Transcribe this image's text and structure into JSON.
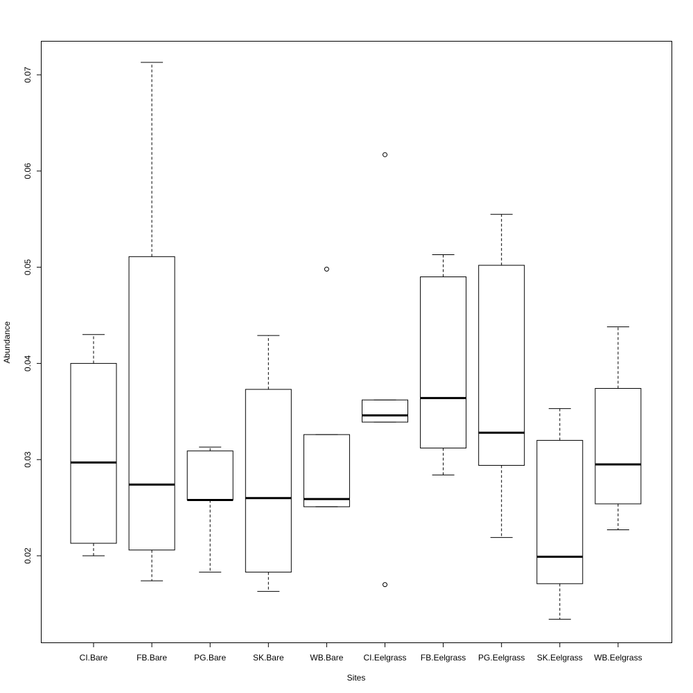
{
  "chart_data": {
    "type": "boxplot",
    "title": "",
    "xlabel": "Sites",
    "ylabel": "Abundance",
    "ylim": [
      0.0115,
      0.0742
    ],
    "yticks": [
      0.02,
      0.03,
      0.04,
      0.05,
      0.06,
      0.07
    ],
    "ytick_labels": [
      "0.02",
      "0.03",
      "0.04",
      "0.05",
      "0.06",
      "0.07"
    ],
    "categories": [
      "CI.Bare",
      "FB.Bare",
      "PG.Bare",
      "SK.Bare",
      "WB.Bare",
      "CI.Eelgrass",
      "FB.Eelgrass",
      "PG.Eelgrass",
      "SK.Eelgrass",
      "WB.Eelgrass"
    ],
    "boxes": [
      {
        "label": "CI.Bare",
        "whisker_low": 0.02,
        "q1": 0.0213,
        "median": 0.0297,
        "q3": 0.04,
        "whisker_high": 0.043,
        "outliers": []
      },
      {
        "label": "FB.Bare",
        "whisker_low": 0.0174,
        "q1": 0.0206,
        "median": 0.0274,
        "q3": 0.0511,
        "whisker_high": 0.0713,
        "outliers": []
      },
      {
        "label": "PG.Bare",
        "whisker_low": 0.0183,
        "q1": 0.0258,
        "median": 0.0258,
        "q3": 0.0309,
        "whisker_high": 0.0313,
        "outliers": []
      },
      {
        "label": "SK.Bare",
        "whisker_low": 0.0163,
        "q1": 0.0183,
        "median": 0.026,
        "q3": 0.0373,
        "whisker_high": 0.0429,
        "outliers": []
      },
      {
        "label": "WB.Bare",
        "whisker_low": 0.0251,
        "q1": 0.0251,
        "median": 0.0259,
        "q3": 0.0326,
        "whisker_high": 0.0326,
        "outliers": [
          0.0498
        ]
      },
      {
        "label": "CI.Eelgrass",
        "whisker_low": 0.0339,
        "q1": 0.0339,
        "median": 0.0346,
        "q3": 0.0362,
        "whisker_high": 0.0362,
        "outliers": [
          0.0617,
          0.017
        ]
      },
      {
        "label": "FB.Eelgrass",
        "whisker_low": 0.0284,
        "q1": 0.0312,
        "median": 0.0364,
        "q3": 0.049,
        "whisker_high": 0.0513,
        "outliers": []
      },
      {
        "label": "PG.Eelgrass",
        "whisker_low": 0.0219,
        "q1": 0.0294,
        "median": 0.0328,
        "q3": 0.0502,
        "whisker_high": 0.0555,
        "outliers": []
      },
      {
        "label": "SK.Eelgrass",
        "whisker_low": 0.0134,
        "q1": 0.0171,
        "median": 0.0199,
        "q3": 0.032,
        "whisker_high": 0.0353,
        "outliers": []
      },
      {
        "label": "WB.Eelgrass",
        "whisker_low": 0.0227,
        "q1": 0.0254,
        "median": 0.0295,
        "q3": 0.0374,
        "whisker_high": 0.0438,
        "outliers": []
      }
    ]
  }
}
